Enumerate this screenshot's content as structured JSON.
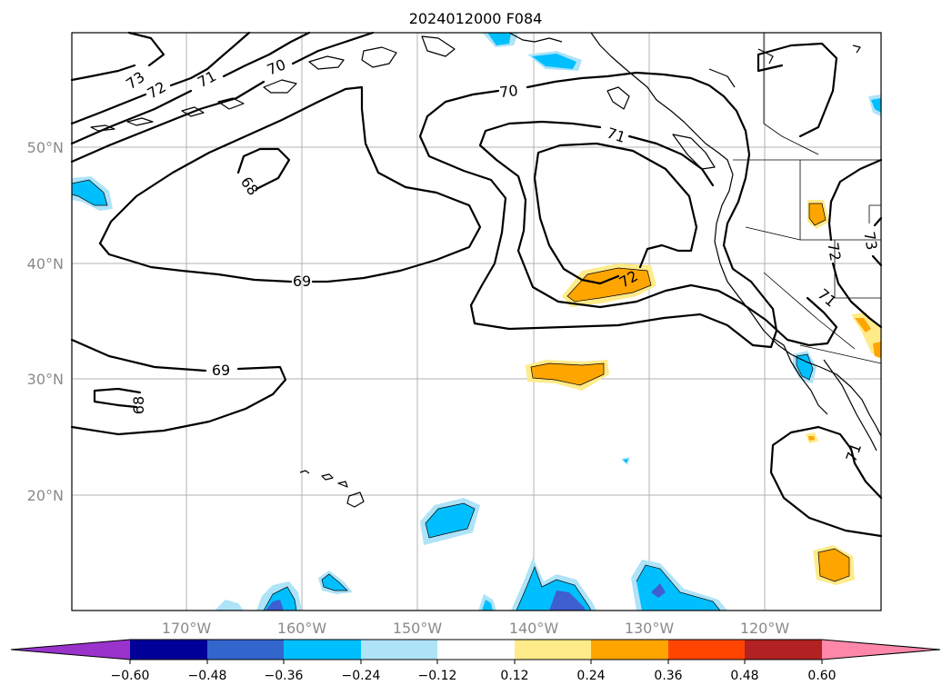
{
  "title": "2024012000 F084",
  "map": {
    "lat_labels": [
      "50°N",
      "40°N",
      "30°N",
      "20°N"
    ],
    "lon_labels": [
      "170°W",
      "160°W",
      "150°W",
      "140°W",
      "130°W",
      "120°W"
    ],
    "contour_labels": {
      "c73_nw": "73",
      "c72_nw": "72",
      "c71_nw": "71",
      "c70_nw": "70",
      "c68_nw": "68",
      "c69_mid": "69",
      "c70_ne": "70",
      "c71_ne": "71",
      "c72_center": "72",
      "c69_sw": "69",
      "c68_sw": "68",
      "c72_east": "72",
      "c73_east": "73",
      "c71_east": "71",
      "c71_se": "71"
    }
  },
  "colorbar": {
    "ticks": [
      "−0.60",
      "−0.48",
      "−0.36",
      "−0.24",
      "−0.12",
      "0.12",
      "0.24",
      "0.36",
      "0.48",
      "0.60"
    ],
    "colors": {
      "under": "#9933cc",
      "b1": "#000099",
      "b2": "#3366cc",
      "b3": "#00bfff",
      "b4": "#aee3f8",
      "b5": "#ffffff",
      "b6": "#ffeb8a",
      "b7": "#ffa500",
      "b8": "#ff4500",
      "b9": "#b22222",
      "over": "#ff88aa"
    }
  },
  "fill_colors": {
    "light_blue": "#aee3f8",
    "blue": "#00bfff",
    "dark_blue": "#3f5fd0",
    "light_yellow": "#ffeb8a",
    "orange": "#ffa500"
  }
}
